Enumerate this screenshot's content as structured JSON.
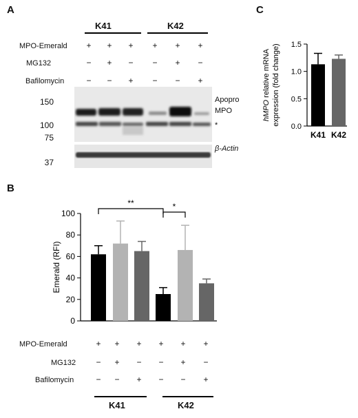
{
  "panelA": {
    "letter": "A",
    "groups": [
      "K41",
      "K42"
    ],
    "rows": [
      {
        "label": "MPO-Emerald",
        "signs": [
          "+",
          "+",
          "+",
          "+",
          "+",
          "+"
        ]
      },
      {
        "label": "MG132",
        "signs": [
          "−",
          "+",
          "−",
          "−",
          "+",
          "−"
        ]
      },
      {
        "label": "Bafilomycin",
        "signs": [
          "−",
          "−",
          "+",
          "−",
          "−",
          "+"
        ]
      }
    ],
    "mw_markers": [
      "150",
      "100",
      "75",
      "37"
    ],
    "band_labels": {
      "apopro1": "Apopro",
      "apopro2": "MPO",
      "star": "*",
      "actin": "β-Actin"
    }
  },
  "panelB": {
    "letter": "B",
    "rows": [
      {
        "label": "MPO-Emerald",
        "signs": [
          "+",
          "+",
          "+",
          "+",
          "+",
          "+"
        ]
      },
      {
        "label": "MG132",
        "signs": [
          "−",
          "+",
          "−",
          "−",
          "+",
          "−"
        ]
      },
      {
        "label": "Bafilomycin",
        "signs": [
          "−",
          "−",
          "+",
          "−",
          "−",
          "+"
        ]
      }
    ],
    "groups": [
      "K41",
      "K42"
    ],
    "significance": [
      "**",
      "*"
    ]
  },
  "panelC": {
    "letter": "C"
  },
  "chart_data": [
    {
      "type": "bar",
      "ylabel": "Emerald (RFI)",
      "ylim": [
        0,
        100
      ],
      "yticks": [
        0,
        20,
        40,
        60,
        80,
        100
      ],
      "values": [
        62,
        72,
        65,
        25,
        66,
        35
      ],
      "errors": [
        8,
        21,
        9,
        6,
        23,
        4
      ],
      "colors": [
        "#000000",
        "#b3b3b3",
        "#666666",
        "#000000",
        "#b3b3b3",
        "#666666"
      ],
      "significance": [
        {
          "from": 0,
          "to": 3,
          "label": "**"
        },
        {
          "from": 3,
          "to": 4,
          "label": "*"
        }
      ]
    },
    {
      "type": "bar",
      "ylabel": "hMPO relative mRNA expression (fold change)",
      "categories": [
        "K41",
        "K42"
      ],
      "values": [
        1.13,
        1.23
      ],
      "errors": [
        0.2,
        0.07
      ],
      "ylim": [
        0,
        1.5
      ],
      "yticks": [
        "0.0",
        "0.5",
        "1.0",
        "1.5"
      ],
      "colors": [
        "#000000",
        "#666666"
      ]
    }
  ]
}
